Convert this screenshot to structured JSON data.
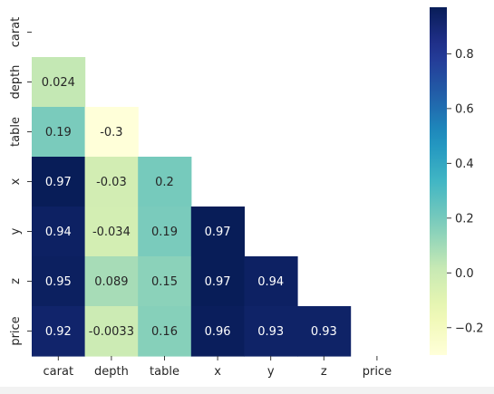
{
  "chart_data": {
    "type": "heatmap",
    "variables": [
      "carat",
      "depth",
      "table",
      "x",
      "y",
      "z",
      "price"
    ],
    "mask": "upper-triangle-including-diagonal",
    "cells": [
      {
        "row": "depth",
        "col": "carat",
        "value": 0.024,
        "label": "0.024"
      },
      {
        "row": "table",
        "col": "carat",
        "value": 0.19,
        "label": "0.19"
      },
      {
        "row": "table",
        "col": "depth",
        "value": -0.3,
        "label": "-0.3"
      },
      {
        "row": "x",
        "col": "carat",
        "value": 0.97,
        "label": "0.97"
      },
      {
        "row": "x",
        "col": "depth",
        "value": -0.03,
        "label": "-0.03"
      },
      {
        "row": "x",
        "col": "table",
        "value": 0.2,
        "label": "0.2"
      },
      {
        "row": "y",
        "col": "carat",
        "value": 0.94,
        "label": "0.94"
      },
      {
        "row": "y",
        "col": "depth",
        "value": -0.034,
        "label": "-0.034"
      },
      {
        "row": "y",
        "col": "table",
        "value": 0.19,
        "label": "0.19"
      },
      {
        "row": "y",
        "col": "x",
        "value": 0.97,
        "label": "0.97"
      },
      {
        "row": "z",
        "col": "carat",
        "value": 0.95,
        "label": "0.95"
      },
      {
        "row": "z",
        "col": "depth",
        "value": 0.089,
        "label": "0.089"
      },
      {
        "row": "z",
        "col": "table",
        "value": 0.15,
        "label": "0.15"
      },
      {
        "row": "z",
        "col": "x",
        "value": 0.97,
        "label": "0.97"
      },
      {
        "row": "z",
        "col": "y",
        "value": 0.94,
        "label": "0.94"
      },
      {
        "row": "price",
        "col": "carat",
        "value": 0.92,
        "label": "0.92"
      },
      {
        "row": "price",
        "col": "depth",
        "value": -0.0033,
        "label": "-0.0033"
      },
      {
        "row": "price",
        "col": "table",
        "value": 0.16,
        "label": "0.16"
      },
      {
        "row": "price",
        "col": "x",
        "value": 0.96,
        "label": "0.96"
      },
      {
        "row": "price",
        "col": "y",
        "value": 0.93,
        "label": "0.93"
      },
      {
        "row": "price",
        "col": "z",
        "value": 0.93,
        "label": "0.93"
      }
    ],
    "colorbar": {
      "colormap": "YlGnBu",
      "vmin": -0.3,
      "vmax": 0.97,
      "ticks": [
        {
          "value": 0.8,
          "label": "0.8"
        },
        {
          "value": 0.6,
          "label": "0.6"
        },
        {
          "value": 0.4,
          "label": "0.4"
        },
        {
          "value": 0.2,
          "label": "0.2"
        },
        {
          "value": 0.0,
          "label": "0.0"
        },
        {
          "value": -0.2,
          "label": "−0.2"
        }
      ]
    },
    "title": "",
    "xlabel": "",
    "ylabel": ""
  }
}
